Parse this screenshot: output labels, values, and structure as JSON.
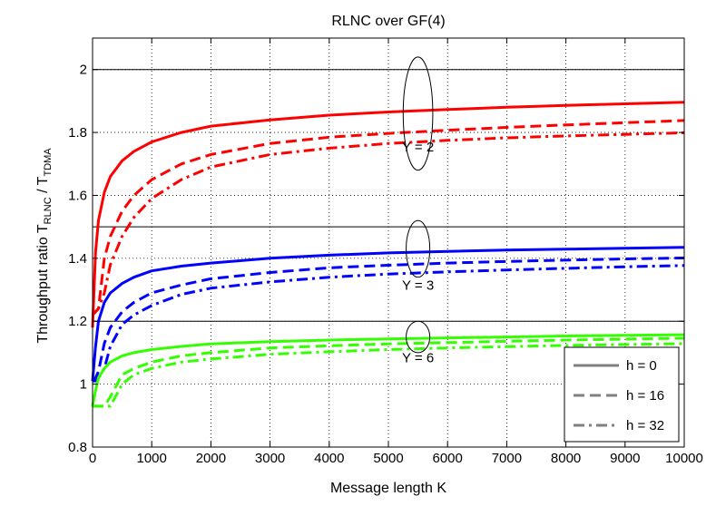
{
  "chart_data": {
    "type": "line",
    "title": "RLNC over GF(4)",
    "xlabel": "Message length K",
    "ylabel": {
      "main": "Throughput ratio T",
      "sub1": "RLNC",
      "mid": " / T",
      "sub2": "TDMA"
    },
    "xlim": [
      0,
      10000
    ],
    "ylim": [
      0.8,
      2.1
    ],
    "xticks": [
      0,
      1000,
      2000,
      3000,
      4000,
      5000,
      6000,
      7000,
      8000,
      9000,
      10000
    ],
    "yticks": [
      0.8,
      1,
      1.2,
      1.4,
      1.6,
      1.8,
      2
    ],
    "grid": true,
    "legend_position": "bottom-right",
    "x": [
      0,
      50,
      100,
      200,
      300,
      500,
      700,
      1000,
      1500,
      2000,
      3000,
      4000,
      5000,
      6000,
      7000,
      8000,
      9000,
      10000
    ],
    "series": [
      {
        "name": "h = 0",
        "group": "Y = 2",
        "color": "#ff0000",
        "style": "solid",
        "values": [
          1.18,
          1.42,
          1.52,
          1.61,
          1.66,
          1.71,
          1.74,
          1.77,
          1.8,
          1.82,
          1.84,
          1.855,
          1.865,
          1.873,
          1.88,
          1.886,
          1.891,
          1.896
        ]
      },
      {
        "name": "h = 16",
        "group": "Y = 2",
        "color": "#ff0000",
        "style": "dash",
        "values": [
          1.22,
          1.23,
          1.24,
          1.4,
          1.47,
          1.55,
          1.6,
          1.65,
          1.7,
          1.73,
          1.765,
          1.785,
          1.797,
          1.807,
          1.816,
          1.824,
          1.831,
          1.838
        ]
      },
      {
        "name": "h = 32",
        "group": "Y = 2",
        "color": "#ff0000",
        "style": "dashdot",
        "values": [
          1.22,
          1.23,
          1.24,
          1.29,
          1.38,
          1.47,
          1.53,
          1.59,
          1.65,
          1.69,
          1.73,
          1.75,
          1.765,
          1.775,
          1.783,
          1.789,
          1.794,
          1.799
        ]
      },
      {
        "name": "h = 0",
        "group": "Y = 3",
        "color": "#0000ff",
        "style": "solid",
        "values": [
          1.01,
          1.12,
          1.2,
          1.26,
          1.29,
          1.32,
          1.34,
          1.36,
          1.375,
          1.385,
          1.4,
          1.41,
          1.417,
          1.422,
          1.426,
          1.429,
          1.432,
          1.435
        ]
      },
      {
        "name": "h = 16",
        "group": "Y = 3",
        "color": "#0000ff",
        "style": "dash",
        "values": [
          1.01,
          1.02,
          1.04,
          1.13,
          1.18,
          1.23,
          1.26,
          1.29,
          1.315,
          1.335,
          1.355,
          1.37,
          1.378,
          1.385,
          1.39,
          1.394,
          1.398,
          1.401
        ]
      },
      {
        "name": "h = 32",
        "group": "Y = 3",
        "color": "#0000ff",
        "style": "dashdot",
        "values": [
          1.01,
          1.01,
          1.02,
          1.05,
          1.12,
          1.19,
          1.22,
          1.25,
          1.285,
          1.305,
          1.325,
          1.34,
          1.35,
          1.357,
          1.363,
          1.368,
          1.373,
          1.377
        ]
      },
      {
        "name": "h = 0",
        "group": "Y = 6",
        "color": "#33ff00",
        "style": "solid",
        "values": [
          0.93,
          0.98,
          1.02,
          1.05,
          1.07,
          1.09,
          1.1,
          1.11,
          1.12,
          1.128,
          1.135,
          1.14,
          1.144,
          1.147,
          1.15,
          1.153,
          1.155,
          1.157
        ]
      },
      {
        "name": "h = 16",
        "group": "Y = 6",
        "color": "#33ff00",
        "style": "dash",
        "values": [
          0.93,
          0.93,
          0.93,
          0.93,
          0.96,
          1.03,
          1.05,
          1.07,
          1.09,
          1.1,
          1.115,
          1.122,
          1.128,
          1.132,
          1.136,
          1.14,
          1.143,
          1.146
        ]
      },
      {
        "name": "h = 32",
        "group": "Y = 6",
        "color": "#33ff00",
        "style": "dashdot",
        "values": [
          0.93,
          0.93,
          0.93,
          0.93,
          0.93,
          1.0,
          1.03,
          1.05,
          1.07,
          1.08,
          1.095,
          1.103,
          1.11,
          1.115,
          1.119,
          1.123,
          1.126,
          1.129
        ]
      }
    ],
    "reference_lines": [
      2.0,
      1.5,
      1.2
    ],
    "annotations": [
      {
        "text": "Y = 2",
        "x": 5500,
        "y": 1.74
      },
      {
        "text": "Y = 3",
        "x": 5500,
        "y": 1.3
      },
      {
        "text": "Y = 6",
        "x": 5500,
        "y": 1.07
      }
    ],
    "ellipses": [
      {
        "cx": 5500,
        "cy": 1.86,
        "rx": 250,
        "ry": 0.18
      },
      {
        "cx": 5500,
        "cy": 1.43,
        "rx": 200,
        "ry": 0.09
      },
      {
        "cx": 5500,
        "cy": 1.15,
        "rx": 200,
        "ry": 0.05
      }
    ],
    "legend": [
      {
        "label": "h = 0",
        "style": "solid"
      },
      {
        "label": "h = 16",
        "style": "dash"
      },
      {
        "label": "h = 32",
        "style": "dashdot"
      }
    ],
    "legend_color": "#808080"
  }
}
